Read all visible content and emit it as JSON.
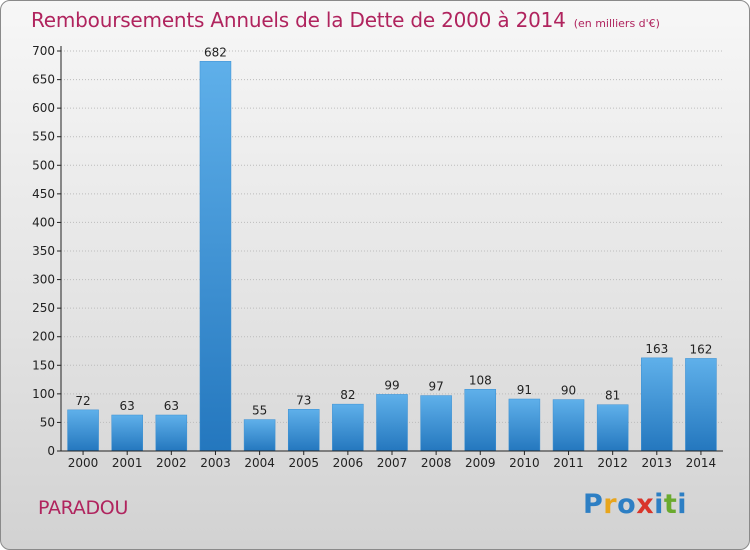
{
  "chart_data": {
    "type": "bar",
    "title": "Remboursements Annuels de la Dette de 2000 à 2014",
    "unit_note": "(en milliers d'€)",
    "categories": [
      "2000",
      "2001",
      "2002",
      "2003",
      "2004",
      "2005",
      "2006",
      "2007",
      "2008",
      "2009",
      "2010",
      "2011",
      "2012",
      "2013",
      "2014"
    ],
    "values": [
      72,
      63,
      63,
      682,
      55,
      73,
      82,
      99,
      97,
      108,
      91,
      90,
      81,
      163,
      162
    ],
    "ylim": [
      0,
      700
    ],
    "yticks": [
      0,
      50,
      100,
      150,
      200,
      250,
      300,
      350,
      400,
      450,
      500,
      550,
      600,
      650,
      700
    ],
    "xlabel": "",
    "ylabel": "",
    "grid": true,
    "colors": {
      "bar_light": "#5fb0ea",
      "bar_dark": "#2477be",
      "title": "#b0245e",
      "axis": "#222222",
      "grid": "#bcbcbc"
    }
  },
  "place_name": "PARADOU",
  "logo": {
    "letters": [
      "P",
      "r",
      "o",
      "x",
      "i",
      "t",
      "i"
    ],
    "colors": [
      "#2d7fc4",
      "#e8a51c",
      "#2d7fc4",
      "#d9352a",
      "#2d7fc4",
      "#6aaa2e",
      "#2d7fc4"
    ]
  }
}
